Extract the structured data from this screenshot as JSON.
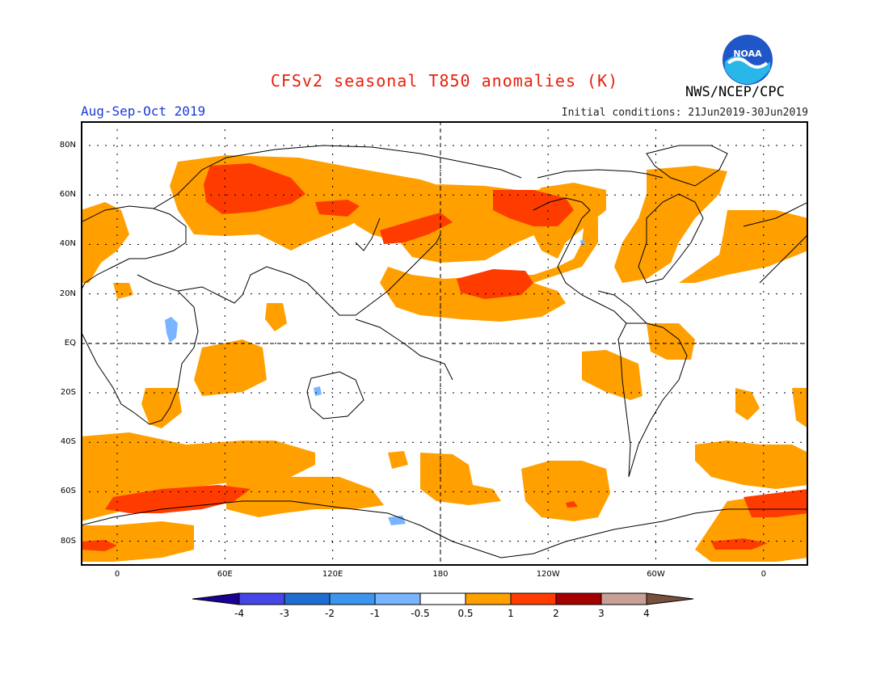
{
  "title": "CFSv2 seasonal T850 anomalies (K)",
  "period": "Aug-Sep-Oct 2019",
  "initial_conditions": "Initial conditions: 21Jun2019-30Jun2019",
  "agency": "NWS/NCEP/CPC",
  "logo_text": "NOAA",
  "colors": {
    "title": "#e8200c",
    "period": "#1a3cd6",
    "light_warm": "#ffa000",
    "strong_warm": "#ff3c00",
    "weak_cool": "#78b4ff"
  },
  "lat_labels": [
    "80N",
    "60N",
    "40N",
    "20N",
    "EQ",
    "20S",
    "40S",
    "60S",
    "80S"
  ],
  "lon_labels": [
    "0",
    "60E",
    "120E",
    "180",
    "120W",
    "60W",
    "0"
  ],
  "colorbar": {
    "labels": [
      "-4",
      "-3",
      "-2",
      "-1",
      "-0.5",
      "0.5",
      "1",
      "2",
      "3",
      "4"
    ],
    "colors": [
      "#1c0096",
      "#4646e6",
      "#1e6ed2",
      "#3c96f0",
      "#78b4ff",
      "#ffffff",
      "#ffa000",
      "#ff3c00",
      "#a50000",
      "#c8a098",
      "#78503c"
    ]
  }
}
